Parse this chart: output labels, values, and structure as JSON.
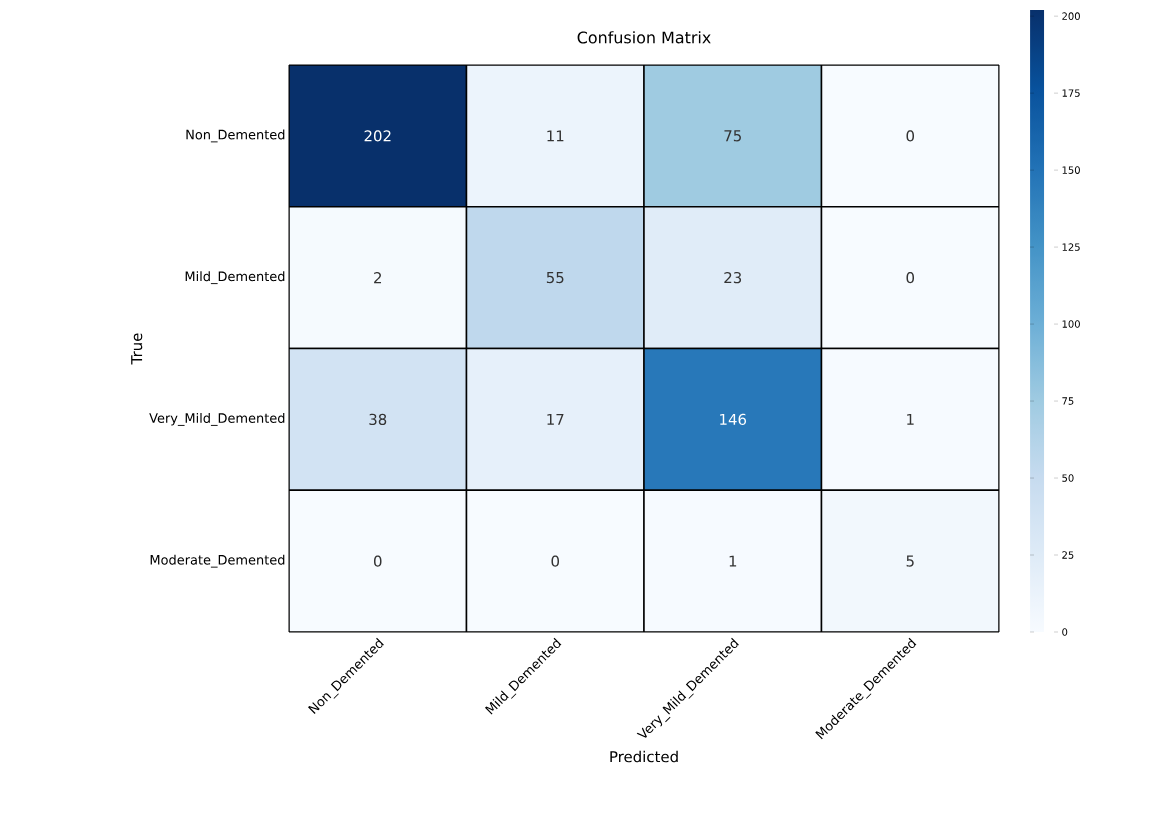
{
  "chart_data": {
    "type": "heatmap",
    "title": "Confusion Matrix",
    "xlabel": "Predicted",
    "ylabel": "True",
    "categories": [
      "Non_Demented",
      "Mild_Demented",
      "Very_Mild_Demented",
      "Moderate_Demented"
    ],
    "y_categories": [
      "Non_Demented",
      "Mild_Demented",
      "Very_Mild_Demented",
      "Moderate_Demented"
    ],
    "cells": [
      [
        202,
        11,
        75,
        0
      ],
      [
        2,
        55,
        23,
        0
      ],
      [
        38,
        17,
        146,
        1
      ],
      [
        0,
        0,
        1,
        5
      ]
    ],
    "data_labels": true,
    "clim": [
      0,
      202
    ],
    "cticks": [
      0,
      25,
      50,
      75,
      100,
      125,
      150,
      175,
      200
    ]
  }
}
